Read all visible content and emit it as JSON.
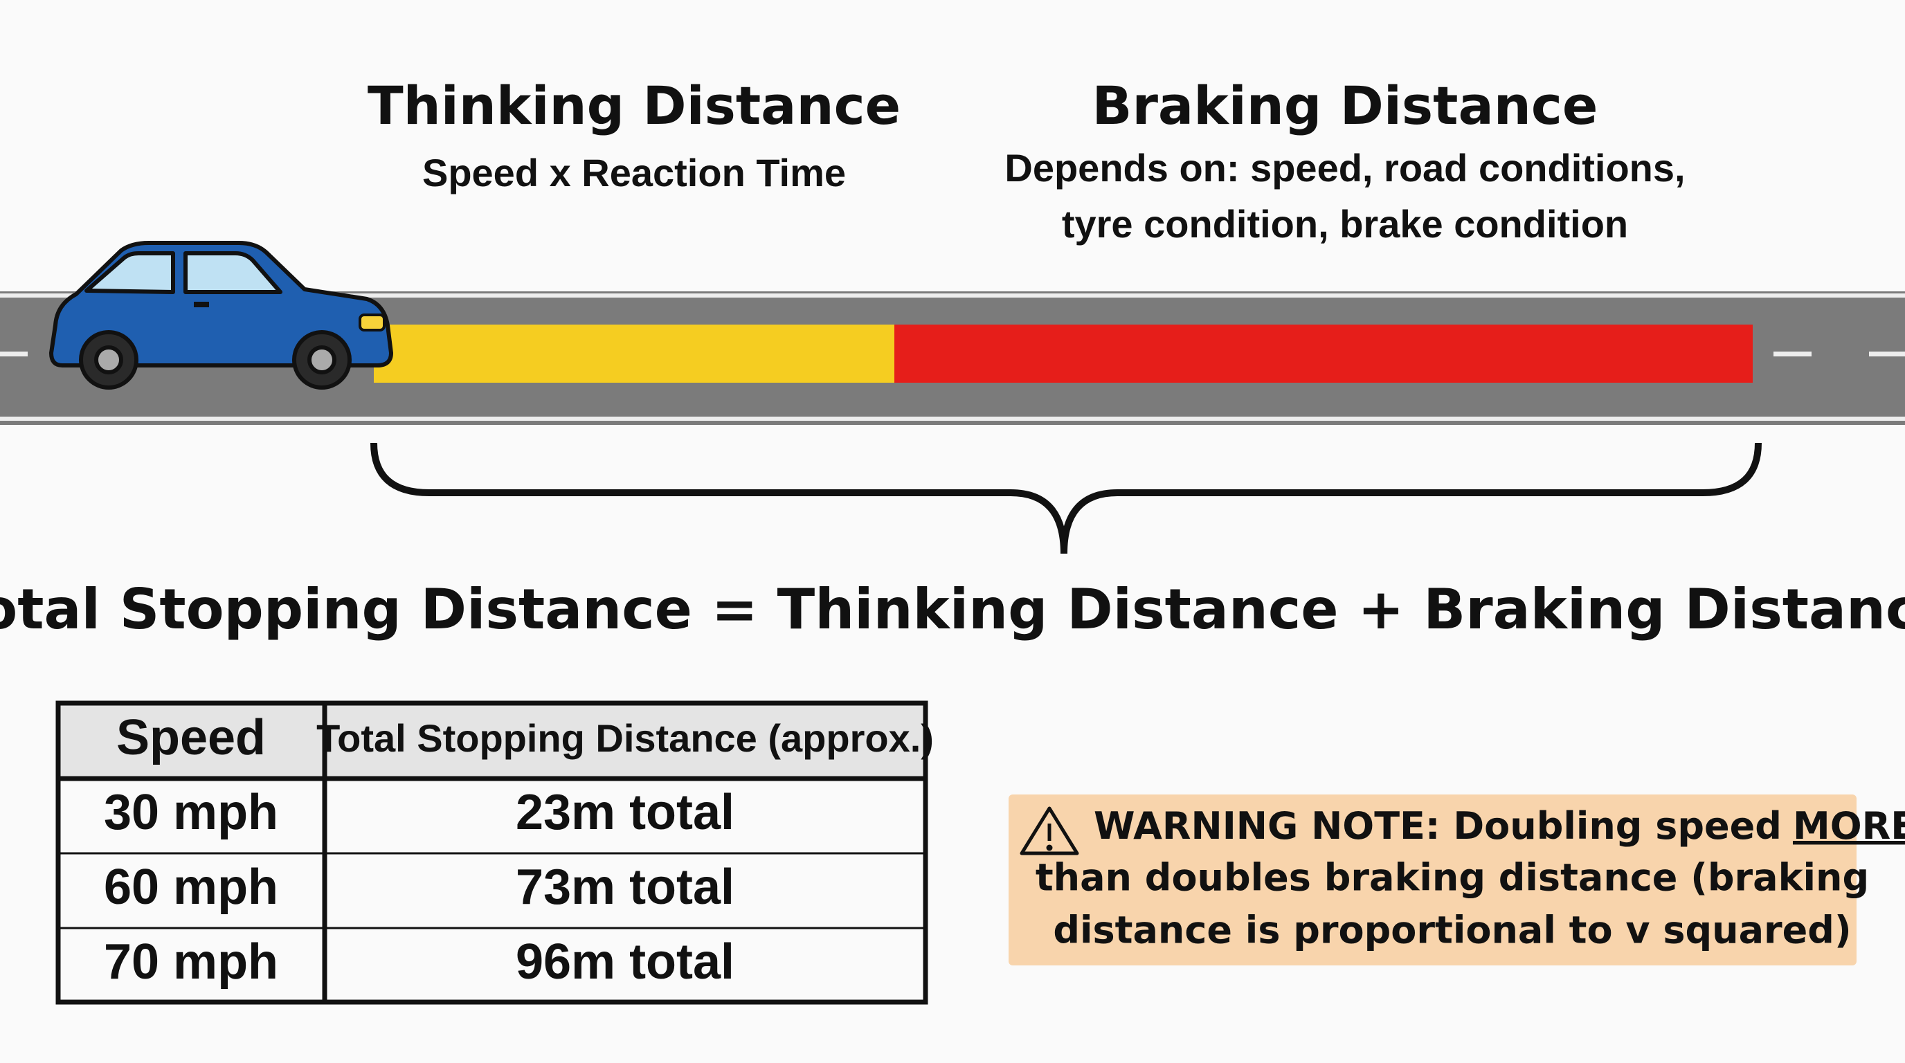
{
  "thinking": {
    "title": "Thinking Distance",
    "subtitle": "Speed x Reaction Time"
  },
  "braking": {
    "title": "Braking Distance",
    "lines": [
      "Depends on: speed, road conditions,",
      "tyre condition, brake condition"
    ]
  },
  "equation": "Total Stopping Distance = Thinking Distance + Braking Distance",
  "table": {
    "header": [
      "Speed",
      "Total Stopping Distance (approx.)"
    ],
    "rows": [
      [
        "30 mph",
        "23m total"
      ],
      [
        "60 mph",
        "73m total"
      ],
      [
        "70 mph",
        "96m total"
      ]
    ]
  },
  "warning": {
    "lines": [
      "WARNING NOTE: Doubling speed",
      "than doubles braking distance (braking",
      "distance is proportional to v squared)"
    ],
    "emphasis": "MORE"
  }
}
